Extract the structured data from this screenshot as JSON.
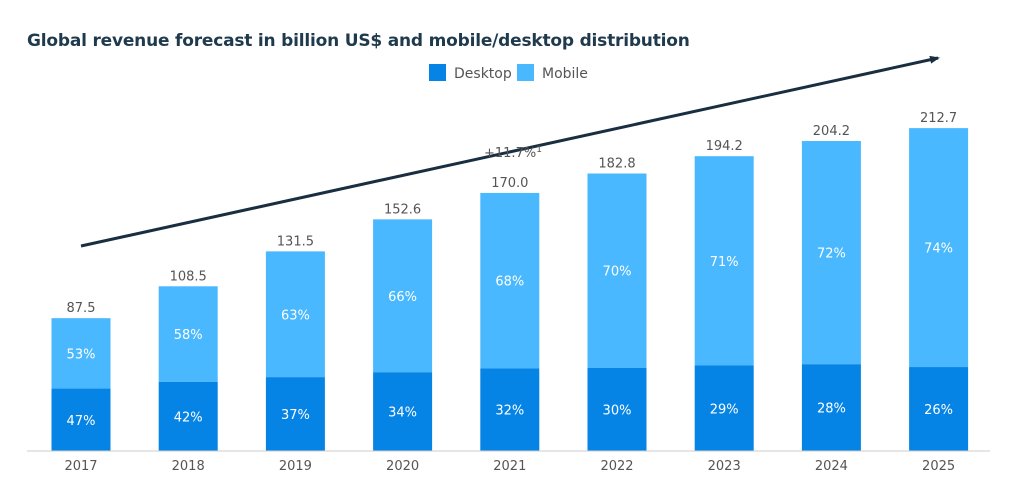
{
  "colors": {
    "desktop": "#0684e5",
    "mobile": "#49b8fe",
    "trend": "#1a2e42",
    "title": "#1f3a4d",
    "text": "#555555",
    "axis": "#cccccc"
  },
  "chart_data": {
    "type": "bar",
    "stacked": true,
    "title": "Global revenue forecast in billion US$ and mobile/desktop distribution",
    "xlabel": "",
    "ylabel": "",
    "categories": [
      "2017",
      "2018",
      "2019",
      "2020",
      "2021",
      "2022",
      "2023",
      "2024",
      "2025"
    ],
    "totals": [
      "87.5",
      "108.5",
      "131.5",
      "152.6",
      "170.0",
      "182.8",
      "194.2",
      "204.2",
      "212.7"
    ],
    "series": [
      {
        "name": "Desktop",
        "percents": [
          47,
          42,
          37,
          34,
          32,
          30,
          29,
          28,
          26
        ],
        "labels": [
          "47%",
          "42%",
          "37%",
          "34%",
          "32%",
          "30%",
          "29%",
          "28%",
          "26%"
        ]
      },
      {
        "name": "Mobile",
        "percents": [
          53,
          58,
          63,
          66,
          68,
          70,
          71,
          72,
          74
        ],
        "labels": [
          "53%",
          "58%",
          "63%",
          "66%",
          "68%",
          "70%",
          "71%",
          "72%",
          "74%"
        ]
      }
    ],
    "ylim": [
      0,
      220
    ],
    "grid": false,
    "legend_position": "top-center",
    "annotation": {
      "text": "+11.7%",
      "superscript": "1"
    }
  }
}
